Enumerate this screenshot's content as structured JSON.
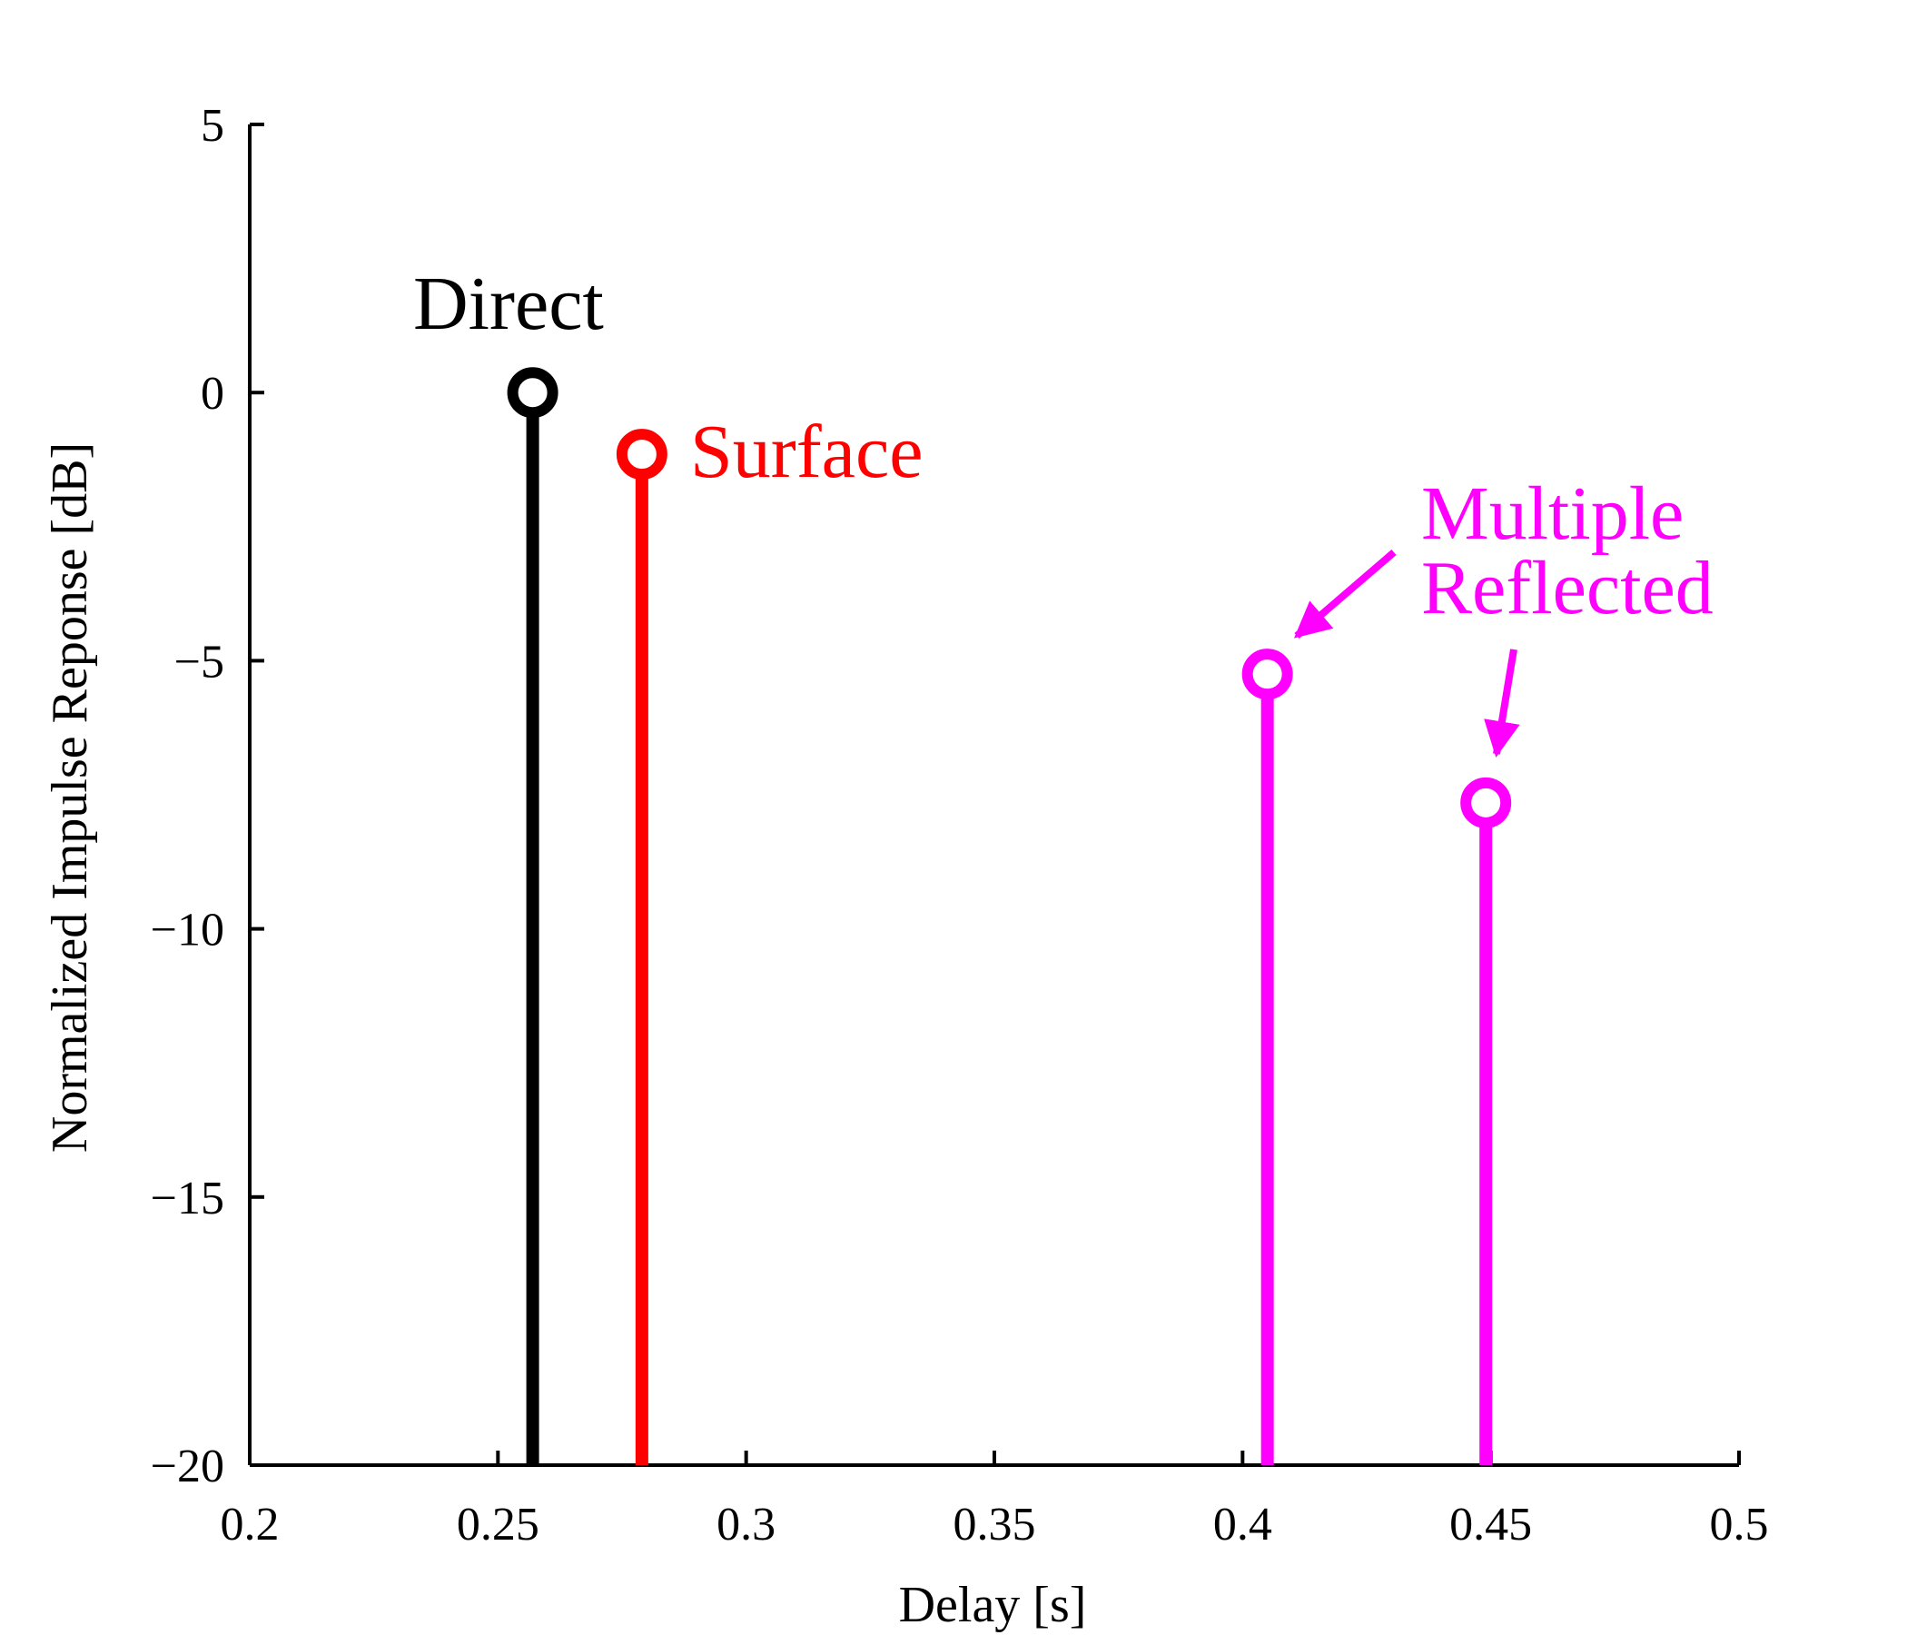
{
  "chart_data": {
    "type": "stem",
    "title": "",
    "xlabel": "Delay [s]",
    "ylabel": "Normalized Impulse Reponse [dB]",
    "xlim": [
      0.2,
      0.5
    ],
    "ylim": [
      -20,
      5
    ],
    "x_ticks": [
      0.2,
      0.25,
      0.3,
      0.35,
      0.4,
      0.45,
      0.5
    ],
    "x_tick_labels": [
      "0.2",
      "0.25",
      "0.3",
      "0.35",
      "0.4",
      "0.45",
      "0.5"
    ],
    "y_ticks": [
      5,
      0,
      -5,
      -10,
      -15,
      -20
    ],
    "y_tick_labels": [
      "5",
      "0",
      "−5",
      "−10",
      "−15",
      "−20"
    ],
    "grid": false,
    "legend": "none",
    "series": [
      {
        "label": "Direct",
        "color": "#000000",
        "points": [
          {
            "x": 0.257,
            "y": 0.0
          }
        ]
      },
      {
        "label": "Surface",
        "color": "#ff0000",
        "points": [
          {
            "x": 0.279,
            "y": -1.15
          }
        ]
      },
      {
        "label": "Multiple Reflected",
        "color": "#ff00ff",
        "points": [
          {
            "x": 0.405,
            "y": -5.25
          },
          {
            "x": 0.449,
            "y": -7.65
          }
        ]
      }
    ],
    "annotations": [
      {
        "id": "direct",
        "lines": [
          "Direct"
        ],
        "color": "#000000"
      },
      {
        "id": "surface",
        "lines": [
          "Surface"
        ],
        "color": "#ff0000"
      },
      {
        "id": "multiple",
        "lines": [
          "Multiple",
          "Reflected"
        ],
        "color": "#ff00ff"
      }
    ]
  }
}
